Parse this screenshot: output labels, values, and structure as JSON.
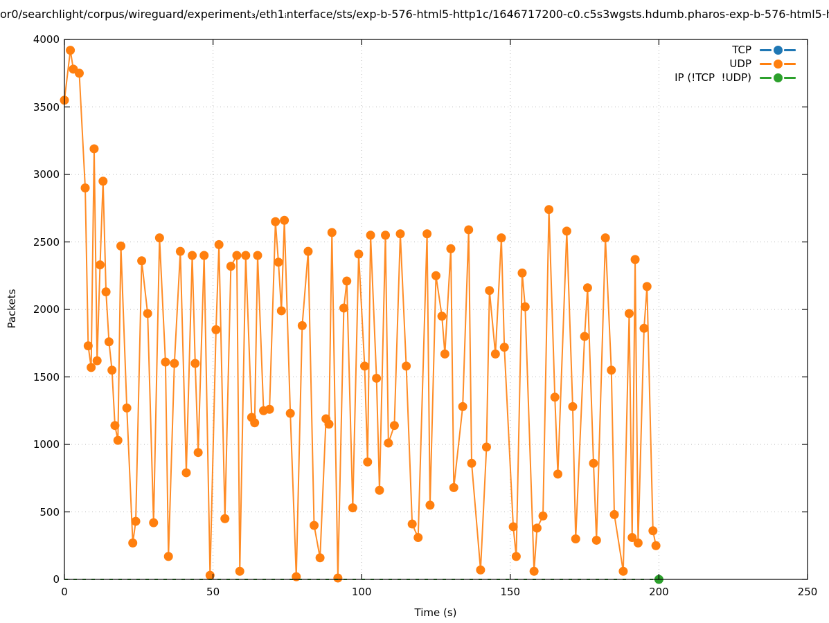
{
  "chart_data": {
    "type": "line",
    "title": "or0/searchlight/corpus/wireguard/experiment₃/eth1ᵢnterface/sts/exp-b-576-html5-http1c/1646717200-c0.c5s3wgsts.hdumb.pharos-exp-b-576-html5-h",
    "xlabel": "Time (s)",
    "ylabel": "Packets",
    "xlim": [
      0,
      250
    ],
    "ylim": [
      0,
      4000
    ],
    "xticks": [
      0,
      50,
      100,
      150,
      200,
      250
    ],
    "yticks": [
      0,
      500,
      1000,
      1500,
      2000,
      2500,
      3000,
      3500,
      4000
    ],
    "grid": true,
    "legend_position": "top-right-inside",
    "marker": "filled-circle",
    "series": [
      {
        "name": "TCP",
        "color": "#1f77b4",
        "style": "dashed-line-with-points",
        "points": []
      },
      {
        "name": "UDP",
        "color": "#ff7f0e",
        "style": "solid-line-with-points",
        "points": [
          [
            0,
            3550
          ],
          [
            2,
            3920
          ],
          [
            3,
            3780
          ],
          [
            5,
            3750
          ],
          [
            7,
            2900
          ],
          [
            8,
            1730
          ],
          [
            9,
            1570
          ],
          [
            10,
            3190
          ],
          [
            11,
            1620
          ],
          [
            12,
            2330
          ],
          [
            13,
            2950
          ],
          [
            14,
            2130
          ],
          [
            15,
            1760
          ],
          [
            16,
            1550
          ],
          [
            17,
            1140
          ],
          [
            18,
            1030
          ],
          [
            19,
            2470
          ],
          [
            21,
            1270
          ],
          [
            23,
            270
          ],
          [
            24,
            430
          ],
          [
            26,
            2360
          ],
          [
            28,
            1970
          ],
          [
            30,
            420
          ],
          [
            32,
            2530
          ],
          [
            34,
            1610
          ],
          [
            35,
            170
          ],
          [
            37,
            1600
          ],
          [
            39,
            2430
          ],
          [
            41,
            790
          ],
          [
            43,
            2400
          ],
          [
            44,
            1600
          ],
          [
            45,
            940
          ],
          [
            47,
            2400
          ],
          [
            49,
            30
          ],
          [
            51,
            1850
          ],
          [
            52,
            2480
          ],
          [
            54,
            450
          ],
          [
            56,
            2320
          ],
          [
            58,
            2400
          ],
          [
            59,
            60
          ],
          [
            61,
            2400
          ],
          [
            63,
            1200
          ],
          [
            64,
            1160
          ],
          [
            65,
            2400
          ],
          [
            67,
            1250
          ],
          [
            69,
            1260
          ],
          [
            71,
            2650
          ],
          [
            72,
            2350
          ],
          [
            73,
            1990
          ],
          [
            74,
            2660
          ],
          [
            76,
            1230
          ],
          [
            78,
            20
          ],
          [
            80,
            1880
          ],
          [
            82,
            2430
          ],
          [
            84,
            400
          ],
          [
            86,
            160
          ],
          [
            88,
            1190
          ],
          [
            89,
            1150
          ],
          [
            90,
            2570
          ],
          [
            92,
            10
          ],
          [
            94,
            2010
          ],
          [
            95,
            2210
          ],
          [
            97,
            530
          ],
          [
            99,
            2410
          ],
          [
            101,
            1580
          ],
          [
            102,
            870
          ],
          [
            103,
            2550
          ],
          [
            105,
            1490
          ],
          [
            106,
            660
          ],
          [
            108,
            2550
          ],
          [
            109,
            1010
          ],
          [
            111,
            1140
          ],
          [
            113,
            2560
          ],
          [
            115,
            1580
          ],
          [
            117,
            410
          ],
          [
            119,
            310
          ],
          [
            122,
            2560
          ],
          [
            123,
            550
          ],
          [
            125,
            2250
          ],
          [
            127,
            1950
          ],
          [
            128,
            1670
          ],
          [
            130,
            2450
          ],
          [
            131,
            680
          ],
          [
            134,
            1280
          ],
          [
            136,
            2590
          ],
          [
            137,
            860
          ],
          [
            140,
            70
          ],
          [
            142,
            980
          ],
          [
            143,
            2140
          ],
          [
            145,
            1670
          ],
          [
            147,
            2530
          ],
          [
            148,
            1720
          ],
          [
            151,
            390
          ],
          [
            152,
            170
          ],
          [
            154,
            2270
          ],
          [
            155,
            2020
          ],
          [
            158,
            60
          ],
          [
            159,
            380
          ],
          [
            161,
            470
          ],
          [
            163,
            2740
          ],
          [
            165,
            1350
          ],
          [
            166,
            780
          ],
          [
            169,
            2580
          ],
          [
            171,
            1280
          ],
          [
            172,
            300
          ],
          [
            175,
            1800
          ],
          [
            176,
            2160
          ],
          [
            178,
            860
          ],
          [
            179,
            290
          ],
          [
            182,
            2530
          ],
          [
            184,
            1550
          ],
          [
            185,
            480
          ],
          [
            188,
            60
          ],
          [
            190,
            1970
          ],
          [
            191,
            310
          ],
          [
            192,
            2370
          ],
          [
            193,
            270
          ],
          [
            195,
            1860
          ],
          [
            196,
            2170
          ],
          [
            198,
            360
          ],
          [
            199,
            250
          ]
        ]
      },
      {
        "name": "IP (!TCP  !UDP)",
        "color": "#2ca02c",
        "style": "dashed-line-with-points",
        "points": [
          [
            0,
            0
          ],
          [
            200,
            0
          ]
        ],
        "marker_points": [
          [
            200,
            0
          ]
        ]
      }
    ]
  }
}
